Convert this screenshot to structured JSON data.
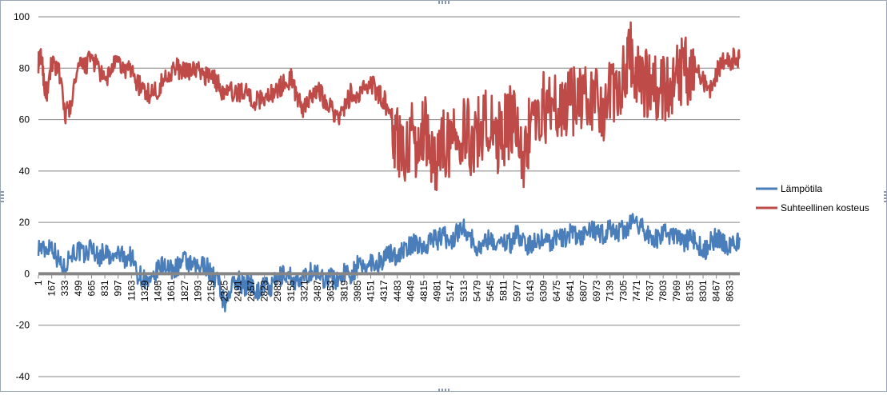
{
  "chart_data": {
    "type": "line",
    "title": "",
    "xlabel": "",
    "ylabel": "",
    "ylim": [
      -40,
      100
    ],
    "y_ticks": [
      -40,
      -20,
      0,
      20,
      40,
      60,
      80,
      100
    ],
    "x_tick_labels": [
      "1",
      "167",
      "333",
      "499",
      "665",
      "831",
      "997",
      "1163",
      "1329",
      "1495",
      "1661",
      "1827",
      "1993",
      "2159",
      "2325",
      "2491",
      "2657",
      "2823",
      "2989",
      "3155",
      "3321",
      "3487",
      "3653",
      "3819",
      "3985",
      "4151",
      "4317",
      "4483",
      "4649",
      "4815",
      "4981",
      "5147",
      "5313",
      "5479",
      "5645",
      "5811",
      "5977",
      "6143",
      "6309",
      "6475",
      "6641",
      "6807",
      "6973",
      "7139",
      "7305",
      "7471",
      "7637",
      "7803",
      "7969",
      "8135",
      "8301",
      "8467",
      "8633"
    ],
    "x_range": [
      1,
      8760
    ],
    "grid": "horizontal",
    "legend_position": "right",
    "series": [
      {
        "name": "Lämpötila",
        "color": "#4a7ebb",
        "band": "narrow",
        "points": [
          [
            1,
            11
          ],
          [
            80,
            9
          ],
          [
            160,
            12
          ],
          [
            240,
            6
          ],
          [
            320,
            2
          ],
          [
            400,
            8
          ],
          [
            500,
            9
          ],
          [
            580,
            7
          ],
          [
            665,
            11
          ],
          [
            750,
            6
          ],
          [
            831,
            9
          ],
          [
            910,
            5
          ],
          [
            997,
            8
          ],
          [
            1080,
            6
          ],
          [
            1163,
            7
          ],
          [
            1240,
            0
          ],
          [
            1329,
            -2
          ],
          [
            1400,
            -5
          ],
          [
            1495,
            2
          ],
          [
            1580,
            4
          ],
          [
            1661,
            1
          ],
          [
            1740,
            3
          ],
          [
            1827,
            5
          ],
          [
            1900,
            3
          ],
          [
            1993,
            2
          ],
          [
            2080,
            4
          ],
          [
            2159,
            0
          ],
          [
            2250,
            -3
          ],
          [
            2325,
            -12
          ],
          [
            2400,
            -6
          ],
          [
            2491,
            -2
          ],
          [
            2570,
            -5
          ],
          [
            2657,
            -3
          ],
          [
            2740,
            -7
          ],
          [
            2823,
            -4
          ],
          [
            2900,
            -6
          ],
          [
            2989,
            -2
          ],
          [
            3070,
            0
          ],
          [
            3155,
            -1
          ],
          [
            3240,
            -4
          ],
          [
            3321,
            -2
          ],
          [
            3400,
            1
          ],
          [
            3487,
            0
          ],
          [
            3570,
            -2
          ],
          [
            3653,
            -1
          ],
          [
            3730,
            -3
          ],
          [
            3819,
            1
          ],
          [
            3900,
            0
          ],
          [
            3985,
            3
          ],
          [
            4070,
            2
          ],
          [
            4151,
            5
          ],
          [
            4240,
            4
          ],
          [
            4317,
            6
          ],
          [
            4400,
            8
          ],
          [
            4483,
            7
          ],
          [
            4560,
            9
          ],
          [
            4649,
            11
          ],
          [
            4730,
            12
          ],
          [
            4815,
            10
          ],
          [
            4900,
            14
          ],
          [
            4981,
            13
          ],
          [
            5060,
            15
          ],
          [
            5147,
            12
          ],
          [
            5230,
            16
          ],
          [
            5313,
            19
          ],
          [
            5400,
            14
          ],
          [
            5479,
            10
          ],
          [
            5560,
            12
          ],
          [
            5645,
            14
          ],
          [
            5730,
            11
          ],
          [
            5811,
            13
          ],
          [
            5900,
            12
          ],
          [
            5977,
            16
          ],
          [
            6060,
            12
          ],
          [
            6143,
            11
          ],
          [
            6230,
            13
          ],
          [
            6309,
            14
          ],
          [
            6400,
            12
          ],
          [
            6475,
            15
          ],
          [
            6560,
            13
          ],
          [
            6641,
            16
          ],
          [
            6720,
            14
          ],
          [
            6807,
            15
          ],
          [
            6890,
            17
          ],
          [
            6973,
            16
          ],
          [
            7060,
            15
          ],
          [
            7139,
            18
          ],
          [
            7220,
            16
          ],
          [
            7305,
            17
          ],
          [
            7390,
            19
          ],
          [
            7471,
            20
          ],
          [
            7560,
            17
          ],
          [
            7637,
            15
          ],
          [
            7720,
            13
          ],
          [
            7803,
            16
          ],
          [
            7890,
            14
          ],
          [
            7969,
            15
          ],
          [
            8050,
            12
          ],
          [
            8135,
            14
          ],
          [
            8220,
            13
          ],
          [
            8301,
            8
          ],
          [
            8380,
            12
          ],
          [
            8467,
            14
          ],
          [
            8550,
            12
          ],
          [
            8633,
            11
          ],
          [
            8700,
            12
          ],
          [
            8760,
            13
          ]
        ]
      },
      {
        "name": "Suhteellinen kosteus",
        "color": "#be4b48",
        "band": "wide",
        "points": [
          [
            1,
            82
          ],
          [
            40,
            85
          ],
          [
            80,
            72
          ],
          [
            120,
            70
          ],
          [
            167,
            83
          ],
          [
            250,
            80
          ],
          [
            333,
            62
          ],
          [
            400,
            65
          ],
          [
            499,
            80
          ],
          [
            580,
            81
          ],
          [
            665,
            84
          ],
          [
            750,
            80
          ],
          [
            831,
            74
          ],
          [
            910,
            80
          ],
          [
            997,
            82
          ],
          [
            1080,
            79
          ],
          [
            1163,
            80
          ],
          [
            1240,
            74
          ],
          [
            1329,
            71
          ],
          [
            1400,
            70
          ],
          [
            1495,
            72
          ],
          [
            1580,
            76
          ],
          [
            1661,
            79
          ],
          [
            1740,
            80
          ],
          [
            1827,
            78
          ],
          [
            1910,
            80
          ],
          [
            1993,
            79
          ],
          [
            2080,
            77
          ],
          [
            2159,
            78
          ],
          [
            2240,
            74
          ],
          [
            2325,
            70
          ],
          [
            2400,
            71
          ],
          [
            2491,
            70
          ],
          [
            2570,
            72
          ],
          [
            2657,
            68
          ],
          [
            2740,
            67
          ],
          [
            2823,
            69
          ],
          [
            2900,
            70
          ],
          [
            2989,
            72
          ],
          [
            3070,
            74
          ],
          [
            3155,
            76
          ],
          [
            3240,
            68
          ],
          [
            3321,
            64
          ],
          [
            3400,
            70
          ],
          [
            3487,
            72
          ],
          [
            3570,
            68
          ],
          [
            3653,
            66
          ],
          [
            3730,
            60
          ],
          [
            3819,
            64
          ],
          [
            3900,
            70
          ],
          [
            3985,
            68
          ],
          [
            4070,
            72
          ],
          [
            4151,
            75
          ],
          [
            4240,
            70
          ],
          [
            4317,
            68
          ],
          [
            4400,
            60
          ],
          [
            4483,
            52
          ],
          [
            4560,
            45
          ],
          [
            4649,
            55
          ],
          [
            4730,
            50
          ],
          [
            4815,
            58
          ],
          [
            4900,
            48
          ],
          [
            4981,
            45
          ],
          [
            5060,
            52
          ],
          [
            5147,
            50
          ],
          [
            5230,
            55
          ],
          [
            5313,
            58
          ],
          [
            5400,
            52
          ],
          [
            5479,
            55
          ],
          [
            5560,
            58
          ],
          [
            5645,
            60
          ],
          [
            5730,
            52
          ],
          [
            5811,
            55
          ],
          [
            5900,
            60
          ],
          [
            5977,
            57
          ],
          [
            6060,
            45
          ],
          [
            6143,
            58
          ],
          [
            6230,
            62
          ],
          [
            6309,
            65
          ],
          [
            6400,
            62
          ],
          [
            6475,
            66
          ],
          [
            6560,
            64
          ],
          [
            6641,
            68
          ],
          [
            6720,
            66
          ],
          [
            6807,
            70
          ],
          [
            6890,
            67
          ],
          [
            6973,
            68
          ],
          [
            7060,
            65
          ],
          [
            7139,
            70
          ],
          [
            7220,
            68
          ],
          [
            7305,
            80
          ],
          [
            7390,
            86
          ],
          [
            7471,
            78
          ],
          [
            7560,
            72
          ],
          [
            7637,
            76
          ],
          [
            7720,
            70
          ],
          [
            7803,
            74
          ],
          [
            7890,
            72
          ],
          [
            7969,
            76
          ],
          [
            8050,
            78
          ],
          [
            8135,
            80
          ],
          [
            8220,
            82
          ],
          [
            8301,
            75
          ],
          [
            8380,
            70
          ],
          [
            8467,
            78
          ],
          [
            8550,
            82
          ],
          [
            8633,
            83
          ],
          [
            8700,
            84
          ],
          [
            8760,
            84
          ]
        ]
      }
    ]
  }
}
